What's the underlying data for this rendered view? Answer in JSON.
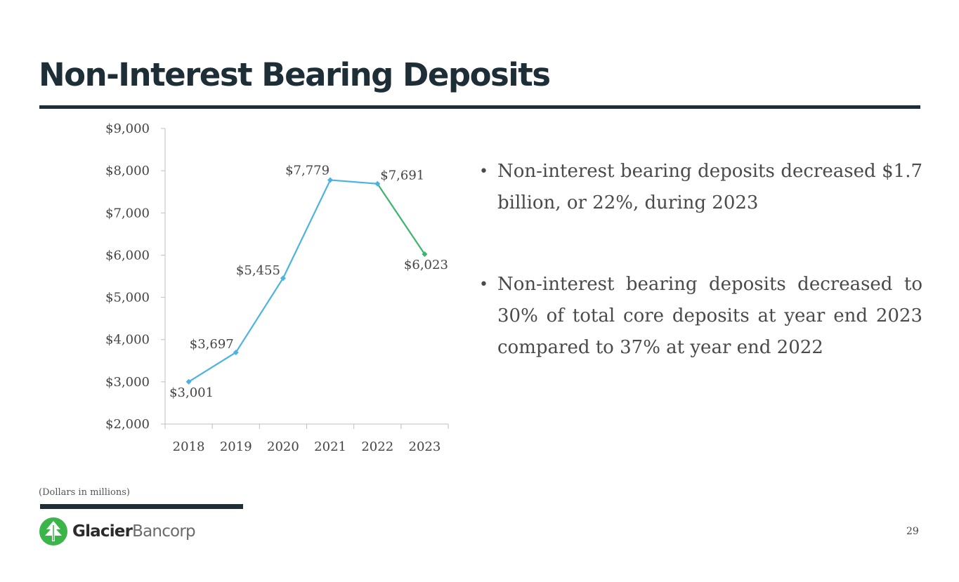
{
  "slide": {
    "title": "Non-Interest Bearing Deposits",
    "footnote": "(Dollars in millions)",
    "page_number": "29"
  },
  "bullets": [
    "Non-interest bearing deposits decreased $1.7 billion, or 22%, during 2023",
    "Non-interest bearing deposits decreased to 30% of total core deposits at year end 2023 compared to 37% at year end 2022"
  ],
  "logo": {
    "name_bold": "Glacier",
    "name_light": "Bancorp",
    "icon": "glacier-tree-logo-icon",
    "color": "#3bb54a"
  },
  "chart_data": {
    "type": "line",
    "title": "",
    "xlabel": "",
    "ylabel": "",
    "categories": [
      "2018",
      "2019",
      "2020",
      "2021",
      "2022",
      "2023"
    ],
    "series": [
      {
        "values": [
          3001,
          3697,
          5455,
          7779,
          7691,
          6023
        ],
        "data_labels": [
          "$3,001",
          "$3,697",
          "$5,455",
          "$7,779",
          "$7,691",
          "$6,023"
        ]
      }
    ],
    "ylim": [
      2000,
      9000
    ],
    "ytick_values": [
      2000,
      3000,
      4000,
      5000,
      6000,
      7000,
      8000,
      9000
    ],
    "ytick_labels": [
      "$2,000",
      "$3,000",
      "$4,000",
      "$5,000",
      "$6,000",
      "$7,000",
      "$8,000",
      "$9,000"
    ],
    "grid": false,
    "legend": "none",
    "colors": {
      "line": "#4bb3e0",
      "last_segment": "#3bb66a",
      "axis": "#bfbfbf"
    }
  }
}
